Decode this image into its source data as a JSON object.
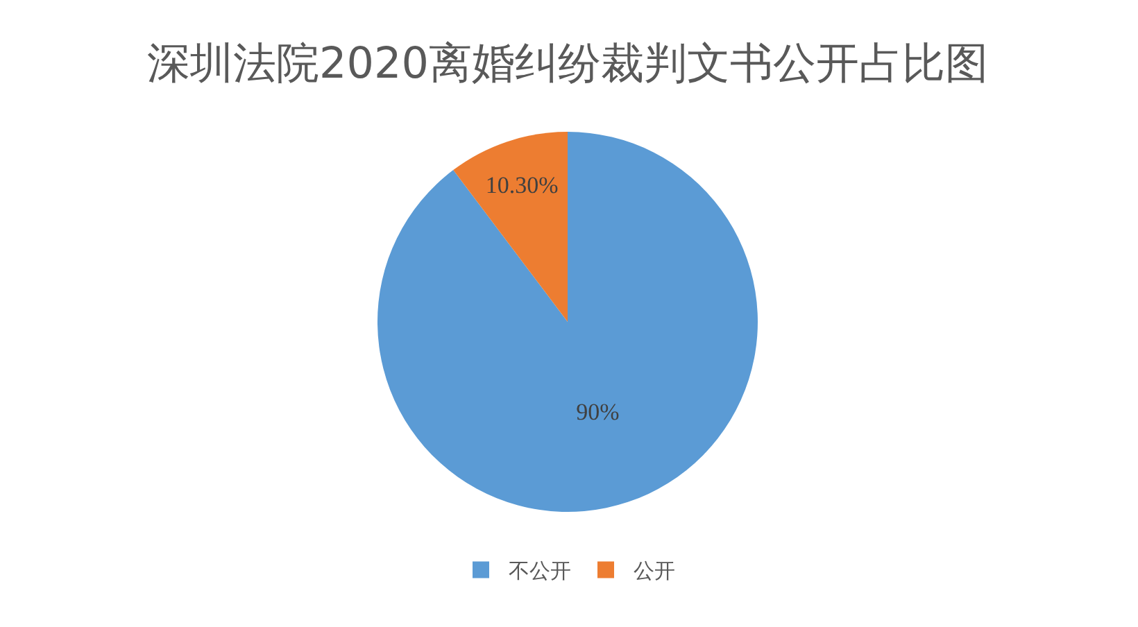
{
  "chart_data": {
    "type": "pie",
    "title": "深圳法院2020离婚纠纷裁判文书公开占比图",
    "categories": [
      "不公开",
      "公开"
    ],
    "values": [
      90,
      10.3
    ],
    "colors": [
      "#5b9bd5",
      "#ed7d31"
    ],
    "value_labels": [
      "90%",
      "10.30%"
    ],
    "legend": "bottom"
  }
}
